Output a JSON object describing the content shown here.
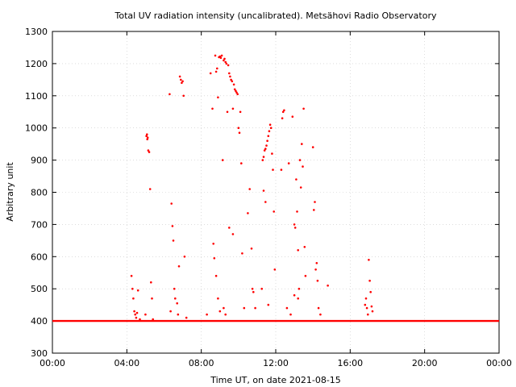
{
  "chart_data": {
    "type": "scatter",
    "title": "Total UV radiation intensity (uncalibrated). Metsähovi Radio Observatory",
    "xlabel": "Time UT, on date 2021-08-15",
    "ylabel": "Arbitrary unit",
    "xlim": [
      0,
      24
    ],
    "ylim": [
      300,
      1300
    ],
    "grid": true,
    "x_ticks": [
      "00:00",
      "04:00",
      "08:00",
      "12:00",
      "16:00",
      "20:00",
      "00:00"
    ],
    "y_ticks": [
      300,
      400,
      500,
      600,
      700,
      800,
      900,
      1000,
      1100,
      1200,
      1300
    ],
    "series_color": "#ff0000",
    "baseline": {
      "value": 400,
      "from": 0,
      "to": 24
    },
    "x_units": "hours UT",
    "points": [
      [
        4.25,
        540
      ],
      [
        4.3,
        500
      ],
      [
        4.35,
        470
      ],
      [
        4.4,
        430
      ],
      [
        4.45,
        420
      ],
      [
        4.5,
        410
      ],
      [
        4.55,
        425
      ],
      [
        4.6,
        495
      ],
      [
        4.7,
        405
      ],
      [
        5.05,
        975
      ],
      [
        5.08,
        980
      ],
      [
        5.1,
        965
      ],
      [
        5.12,
        970
      ],
      [
        5.15,
        930
      ],
      [
        5.2,
        925
      ],
      [
        5.25,
        810
      ],
      [
        5.3,
        520
      ],
      [
        5.35,
        470
      ],
      [
        5.0,
        420
      ],
      [
        5.4,
        405
      ],
      [
        6.3,
        1105
      ],
      [
        6.4,
        765
      ],
      [
        6.45,
        695
      ],
      [
        6.5,
        650
      ],
      [
        6.55,
        500
      ],
      [
        6.6,
        470
      ],
      [
        6.7,
        455
      ],
      [
        6.8,
        570
      ],
      [
        6.85,
        1160
      ],
      [
        6.9,
        1150
      ],
      [
        6.95,
        1140
      ],
      [
        7.0,
        1145
      ],
      [
        7.05,
        1100
      ],
      [
        7.1,
        600
      ],
      [
        6.35,
        430
      ],
      [
        6.75,
        420
      ],
      [
        7.2,
        410
      ],
      [
        8.3,
        420
      ],
      [
        8.5,
        1170
      ],
      [
        8.6,
        1060
      ],
      [
        8.65,
        640
      ],
      [
        8.7,
        595
      ],
      [
        8.75,
        1225
      ],
      [
        8.8,
        1175
      ],
      [
        8.85,
        1185
      ],
      [
        8.9,
        1095
      ],
      [
        8.95,
        1220
      ],
      [
        9.0,
        1222
      ],
      [
        9.05,
        1218
      ],
      [
        9.1,
        1225
      ],
      [
        9.15,
        900
      ],
      [
        9.2,
        1210
      ],
      [
        9.25,
        1215
      ],
      [
        9.3,
        1205
      ],
      [
        9.35,
        1200
      ],
      [
        9.4,
        1050
      ],
      [
        9.45,
        1195
      ],
      [
        9.5,
        1170
      ],
      [
        9.55,
        1160
      ],
      [
        9.6,
        1150
      ],
      [
        9.65,
        1145
      ],
      [
        9.7,
        1060
      ],
      [
        9.75,
        1135
      ],
      [
        9.8,
        1120
      ],
      [
        9.85,
        1115
      ],
      [
        9.9,
        1110
      ],
      [
        9.95,
        1105
      ],
      [
        10.0,
        1000
      ],
      [
        10.05,
        985
      ],
      [
        10.1,
        1050
      ],
      [
        10.15,
        890
      ],
      [
        8.8,
        540
      ],
      [
        8.9,
        470
      ],
      [
        9.0,
        430
      ],
      [
        9.2,
        440
      ],
      [
        9.5,
        690
      ],
      [
        9.7,
        670
      ],
      [
        10.2,
        610
      ],
      [
        10.3,
        440
      ],
      [
        9.3,
        420
      ],
      [
        10.5,
        735
      ],
      [
        10.6,
        810
      ],
      [
        10.7,
        625
      ],
      [
        10.75,
        500
      ],
      [
        10.8,
        490
      ],
      [
        10.9,
        440
      ],
      [
        11.3,
        900
      ],
      [
        11.35,
        910
      ],
      [
        11.4,
        930
      ],
      [
        11.45,
        935
      ],
      [
        11.5,
        945
      ],
      [
        11.55,
        960
      ],
      [
        11.6,
        975
      ],
      [
        11.65,
        990
      ],
      [
        11.7,
        1010
      ],
      [
        11.75,
        1000
      ],
      [
        11.8,
        920
      ],
      [
        11.85,
        870
      ],
      [
        11.9,
        740
      ],
      [
        11.35,
        805
      ],
      [
        11.45,
        770
      ],
      [
        11.25,
        500
      ],
      [
        11.6,
        450
      ],
      [
        11.95,
        560
      ],
      [
        12.3,
        870
      ],
      [
        12.35,
        1030
      ],
      [
        12.4,
        1050
      ],
      [
        12.45,
        1055
      ],
      [
        12.7,
        890
      ],
      [
        12.9,
        1035
      ],
      [
        13.0,
        700
      ],
      [
        13.05,
        690
      ],
      [
        13.1,
        840
      ],
      [
        13.15,
        740
      ],
      [
        13.2,
        620
      ],
      [
        13.25,
        500
      ],
      [
        13.3,
        900
      ],
      [
        13.35,
        815
      ],
      [
        13.4,
        950
      ],
      [
        13.45,
        880
      ],
      [
        13.5,
        1060
      ],
      [
        13.55,
        630
      ],
      [
        13.6,
        540
      ],
      [
        13.0,
        480
      ],
      [
        13.2,
        470
      ],
      [
        12.6,
        440
      ],
      [
        12.8,
        420
      ],
      [
        14.0,
        940
      ],
      [
        14.05,
        745
      ],
      [
        14.1,
        770
      ],
      [
        14.15,
        560
      ],
      [
        14.2,
        580
      ],
      [
        14.25,
        525
      ],
      [
        14.3,
        440
      ],
      [
        14.8,
        510
      ],
      [
        14.4,
        420
      ],
      [
        16.8,
        450
      ],
      [
        16.85,
        470
      ],
      [
        16.9,
        440
      ],
      [
        16.95,
        420
      ],
      [
        17.0,
        590
      ],
      [
        17.05,
        525
      ],
      [
        17.1,
        490
      ],
      [
        17.15,
        445
      ],
      [
        17.2,
        430
      ]
    ]
  }
}
